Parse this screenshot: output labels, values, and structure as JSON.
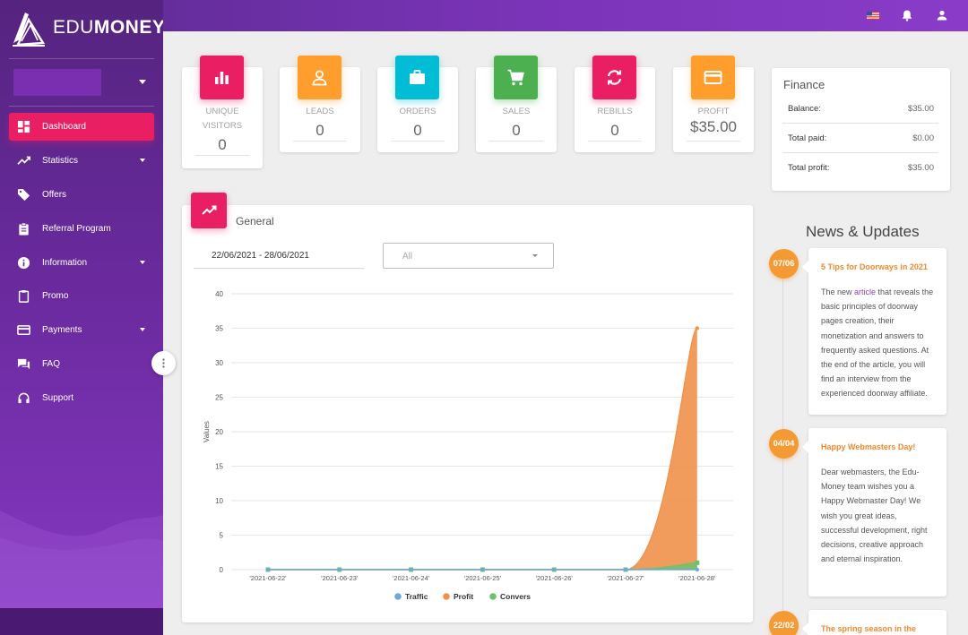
{
  "brand": {
    "prefix": "EDU",
    "suffix": "MONEY"
  },
  "topbar": {
    "flag_icon": "us-flag-icon",
    "notifications_icon": "bell-icon",
    "account_icon": "user-icon"
  },
  "sidebar": {
    "items": [
      {
        "label": "Dashboard",
        "icon": "dashboard-icon",
        "active": true,
        "caret": false
      },
      {
        "label": "Statistics",
        "icon": "trending-icon",
        "active": false,
        "caret": true
      },
      {
        "label": "Offers",
        "icon": "tag-icon",
        "active": false,
        "caret": false
      },
      {
        "label": "Referral Program",
        "icon": "clipboard-icon",
        "active": false,
        "caret": false
      },
      {
        "label": "Information",
        "icon": "info-icon",
        "active": false,
        "caret": true
      },
      {
        "label": "Promo",
        "icon": "clipboard-outline-icon",
        "active": false,
        "caret": false
      },
      {
        "label": "Payments",
        "icon": "credit-card-icon",
        "active": false,
        "caret": true
      },
      {
        "label": "FAQ",
        "icon": "forum-icon",
        "active": false,
        "caret": false
      },
      {
        "label": "Support",
        "icon": "headset-icon",
        "active": false,
        "caret": false
      }
    ]
  },
  "stats": [
    {
      "label": "UNIQUE VISITORS",
      "value": "0",
      "color": "#e91e63",
      "icon": "bar-chart-icon"
    },
    {
      "label": "LEADS",
      "value": "0",
      "color": "#ff9e2c",
      "icon": "person-icon"
    },
    {
      "label": "ORDERS",
      "value": "0",
      "color": "#00bcd4",
      "icon": "briefcase-icon"
    },
    {
      "label": "SALES",
      "value": "0",
      "color": "#4caf50",
      "icon": "cart-icon"
    },
    {
      "label": "REBILLS",
      "value": "0",
      "color": "#e91e63",
      "icon": "refresh-icon"
    },
    {
      "label": "PROFIT",
      "value": "$35.00",
      "color": "#ff9e2c",
      "icon": "card-icon"
    }
  ],
  "finance": {
    "title": "Finance",
    "rows": [
      {
        "label": "Balance:",
        "value": "$35.00"
      },
      {
        "label": "Total paid:",
        "value": "$0.00"
      },
      {
        "label": "Total profit:",
        "value": "$35.00"
      }
    ]
  },
  "general": {
    "title": "General",
    "date_range": "22/06/2021 - 28/06/2021",
    "filter_value": "All"
  },
  "chart_data": {
    "type": "area",
    "title": "",
    "xlabel": "",
    "ylabel": "Values",
    "categories": [
      "'2021-06-22'",
      "'2021-06-23'",
      "'2021-06-24'",
      "'2021-06-25'",
      "'2021-06-26'",
      "'2021-06-27'",
      "'2021-06-28'"
    ],
    "ylim": [
      0,
      40
    ],
    "yticks": [
      0,
      5,
      10,
      15,
      20,
      25,
      30,
      35,
      40
    ],
    "grid": true,
    "legend": "bottom",
    "series": [
      {
        "name": "Traffic",
        "color": "#6fa8dc",
        "values": [
          0,
          0,
          0,
          0,
          0,
          0,
          0
        ]
      },
      {
        "name": "Profit",
        "color": "#f0914a",
        "values": [
          0,
          0,
          0,
          0,
          0,
          0,
          35
        ]
      },
      {
        "name": "Convers",
        "color": "#6cc36c",
        "values": [
          0,
          0,
          0,
          0,
          0,
          0,
          1
        ]
      }
    ]
  },
  "news": {
    "title": "News & Updates",
    "items": [
      {
        "date": "07/06",
        "title": "5 Tips for Doorways in 2021",
        "body_before": "The new ",
        "link": "article",
        "body_after": " that reveals the basic principles of doorway pages creation, their monetization and answers to frequently asked questions. At the end of the article, you will find an interview from the experienced doorway affiliate."
      },
      {
        "date": "04/04",
        "title": "Happy Webmasters Day!",
        "body_before": "Dear webmasters, the Edu-Money team wishes you a Happy Webmaster Day! We wish you great ideas, successful development, right decisions, creative approach and eternal inspiration.",
        "link": "",
        "body_after": ""
      },
      {
        "date": "22/02",
        "title": "The spring season in the",
        "body_before": "",
        "link": "",
        "body_after": ""
      }
    ]
  }
}
